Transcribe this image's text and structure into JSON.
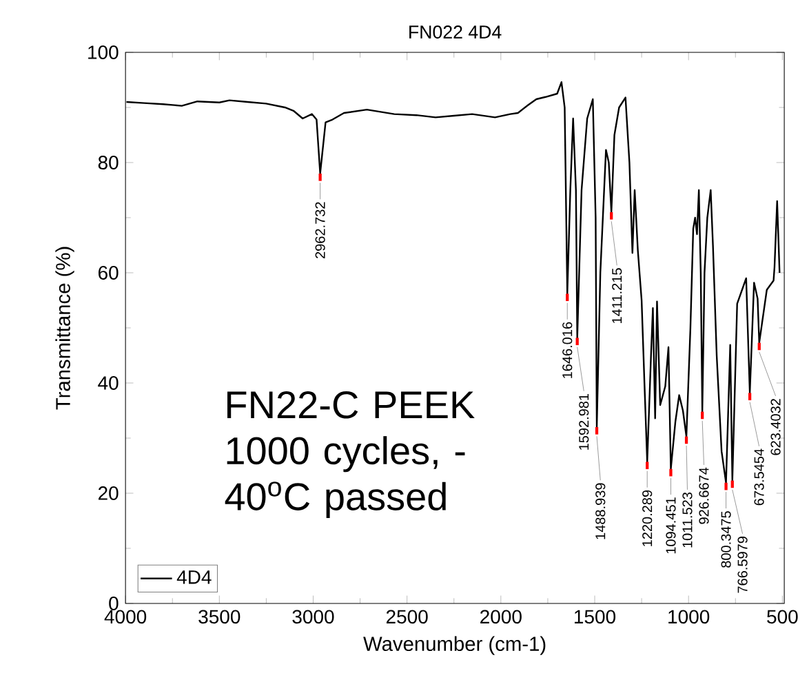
{
  "chart_data": {
    "type": "line",
    "title": "FN022 4D4",
    "xlabel": "Wavenumber (cm-1)",
    "ylabel": "Transmittance (%)",
    "xlim": [
      4000,
      490
    ],
    "xticks": [
      4000,
      3500,
      3000,
      2500,
      2000,
      1500,
      1000,
      500
    ],
    "ylim": [
      0,
      100
    ],
    "yticks": [
      0,
      20,
      40,
      60,
      80,
      100
    ],
    "legend": "bottom left",
    "grid": false,
    "marker": "none",
    "line_style": "solid",
    "series": [
      {
        "name": "4D4",
        "color": "#000000",
        "x": [
          3995,
          3900,
          3800,
          3700,
          3617,
          3500,
          3446,
          3350,
          3251,
          3150,
          3105,
          3056,
          3007,
          2982,
          2962.732,
          2934,
          2897,
          2836,
          2714,
          2568,
          2450,
          2348,
          2250,
          2153,
          2031,
          1950,
          1909,
          1860,
          1811,
          1762,
          1700,
          1677,
          1660,
          1646.016,
          1630,
          1615,
          1600,
          1592.981,
          1570,
          1540,
          1510,
          1495,
          1488.939,
          1470,
          1440,
          1425,
          1411.215,
          1395,
          1370,
          1336,
          1315,
          1299,
          1287,
          1270,
          1250,
          1235,
          1220.289,
          1200,
          1190,
          1178,
          1168,
          1151,
          1124,
          1107,
          1094.451,
          1070,
          1050,
          1030,
          1011.523,
          990,
          975,
          965,
          955,
          945,
          935,
          926.6674,
          915,
          900,
          882,
          870,
          850,
          824,
          800.3475,
          778,
          766.5979,
          741,
          693,
          673.5454,
          651,
          632,
          623.4032,
          583,
          547,
          542,
          528,
          515
        ],
        "values": [
          91.0,
          90.8,
          90.6,
          90.3,
          91.1,
          90.9,
          91.3,
          91.0,
          90.7,
          90.0,
          89.4,
          88.0,
          88.8,
          87.8,
          78.0,
          87.3,
          87.8,
          89.0,
          89.6,
          88.8,
          88.6,
          88.2,
          88.5,
          88.8,
          88.2,
          88.8,
          89.0,
          90.3,
          91.5,
          91.9,
          92.5,
          94.6,
          90,
          56.2,
          75,
          88,
          75,
          48.2,
          75,
          88,
          91.5,
          70,
          32,
          60,
          82.3,
          80,
          71,
          85,
          90,
          91.8,
          80,
          63.6,
          75,
          64,
          55,
          40,
          25.7,
          45,
          53.6,
          33.6,
          54.8,
          36,
          39.4,
          46.5,
          24.4,
          33,
          37.8,
          35,
          30.3,
          50,
          68,
          70,
          67,
          75,
          60,
          34.8,
          60,
          70,
          75,
          65,
          45,
          27.6,
          21.9,
          46.9,
          22.3,
          54.4,
          59,
          38.2,
          58.2,
          55.3,
          47.3,
          56.9,
          58.6,
          61,
          73,
          60
        ]
      }
    ],
    "annotations": [
      {
        "text": "2962.732",
        "x": 2962.732,
        "y": 78.0
      },
      {
        "text": "1646.016",
        "x": 1646.016,
        "y": 56.2
      },
      {
        "text": "1592.981",
        "x": 1592.981,
        "y": 48.2
      },
      {
        "text": "1488.939",
        "x": 1488.939,
        "y": 32
      },
      {
        "text": "1411.215",
        "x": 1411.215,
        "y": 71
      },
      {
        "text": "1220.289",
        "x": 1220.289,
        "y": 25.7
      },
      {
        "text": "1094.451",
        "x": 1094.451,
        "y": 24.4
      },
      {
        "text": "1011.523",
        "x": 1011.523,
        "y": 30.3
      },
      {
        "text": "926.6674",
        "x": 926.6674,
        "y": 34.8
      },
      {
        "text": "800.3475",
        "x": 800.3475,
        "y": 21.9
      },
      {
        "text": "766.5979",
        "x": 766.5979,
        "y": 22.3
      },
      {
        "text": "673.5454",
        "x": 673.5454,
        "y": 38.2
      },
      {
        "text": "623.4032",
        "x": 623.4032,
        "y": 47.3
      },
      "FN22-C PEEK 1000 cycles, -40$^{o}$C passed"
    ]
  }
}
